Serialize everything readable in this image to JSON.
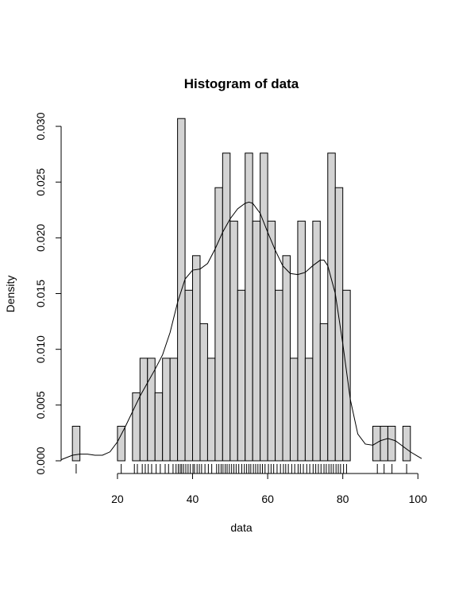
{
  "chart_data": {
    "type": "bar",
    "title": "Histogram of data",
    "xlabel": "data",
    "ylabel": "Density",
    "xlim": [
      5,
      101
    ],
    "ylim": [
      0,
      0.031
    ],
    "bin_width": 2,
    "x_ticks": [
      "20",
      "40",
      "60",
      "80",
      "100"
    ],
    "y_ticks": [
      "0.000",
      "0.005",
      "0.010",
      "0.015",
      "0.020",
      "0.025",
      "0.030"
    ],
    "bins": [
      {
        "x0": 8,
        "x1": 10,
        "density": 0.0031
      },
      {
        "x0": 20,
        "x1": 22,
        "density": 0.0031
      },
      {
        "x0": 24,
        "x1": 26,
        "density": 0.0061
      },
      {
        "x0": 26,
        "x1": 28,
        "density": 0.0092
      },
      {
        "x0": 28,
        "x1": 30,
        "density": 0.0092
      },
      {
        "x0": 30,
        "x1": 32,
        "density": 0.0061
      },
      {
        "x0": 32,
        "x1": 34,
        "density": 0.0092
      },
      {
        "x0": 34,
        "x1": 36,
        "density": 0.0092
      },
      {
        "x0": 36,
        "x1": 38,
        "density": 0.0307
      },
      {
        "x0": 38,
        "x1": 40,
        "density": 0.0153
      },
      {
        "x0": 40,
        "x1": 42,
        "density": 0.0184
      },
      {
        "x0": 42,
        "x1": 44,
        "density": 0.0123
      },
      {
        "x0": 44,
        "x1": 46,
        "density": 0.0092
      },
      {
        "x0": 46,
        "x1": 48,
        "density": 0.0245
      },
      {
        "x0": 48,
        "x1": 50,
        "density": 0.0276
      },
      {
        "x0": 50,
        "x1": 52,
        "density": 0.0215
      },
      {
        "x0": 52,
        "x1": 54,
        "density": 0.0153
      },
      {
        "x0": 54,
        "x1": 56,
        "density": 0.0276
      },
      {
        "x0": 56,
        "x1": 58,
        "density": 0.0215
      },
      {
        "x0": 58,
        "x1": 60,
        "density": 0.0276
      },
      {
        "x0": 60,
        "x1": 62,
        "density": 0.0215
      },
      {
        "x0": 62,
        "x1": 64,
        "density": 0.0153
      },
      {
        "x0": 64,
        "x1": 66,
        "density": 0.0184
      },
      {
        "x0": 66,
        "x1": 68,
        "density": 0.0092
      },
      {
        "x0": 68,
        "x1": 70,
        "density": 0.0215
      },
      {
        "x0": 70,
        "x1": 72,
        "density": 0.0092
      },
      {
        "x0": 72,
        "x1": 74,
        "density": 0.0215
      },
      {
        "x0": 74,
        "x1": 76,
        "density": 0.0123
      },
      {
        "x0": 76,
        "x1": 78,
        "density": 0.0276
      },
      {
        "x0": 78,
        "x1": 80,
        "density": 0.0245
      },
      {
        "x0": 80,
        "x1": 82,
        "density": 0.0153
      },
      {
        "x0": 88,
        "x1": 90,
        "density": 0.0031
      },
      {
        "x0": 90,
        "x1": 92,
        "density": 0.0031
      },
      {
        "x0": 92,
        "x1": 94,
        "density": 0.0031
      },
      {
        "x0": 96,
        "x1": 98,
        "density": 0.0031
      }
    ],
    "density_curve": {
      "x": [
        5,
        8,
        10,
        12,
        14,
        16,
        18,
        20,
        22,
        24,
        26,
        28,
        30,
        32,
        34,
        36,
        38,
        40,
        42,
        44,
        46,
        48,
        50,
        52,
        54,
        55,
        56,
        58,
        60,
        62,
        64,
        66,
        68,
        70,
        72,
        74,
        75,
        76,
        78,
        80,
        82,
        84,
        86,
        88,
        90,
        92,
        94,
        96,
        98,
        100,
        101
      ],
      "y": [
        0.0001,
        0.0005,
        0.0006,
        0.0006,
        0.0005,
        0.0005,
        0.0008,
        0.0017,
        0.003,
        0.0044,
        0.0058,
        0.007,
        0.0082,
        0.0095,
        0.0115,
        0.0142,
        0.0163,
        0.0171,
        0.0172,
        0.0177,
        0.019,
        0.0205,
        0.0217,
        0.0226,
        0.0231,
        0.0232,
        0.0231,
        0.0222,
        0.0205,
        0.0189,
        0.0175,
        0.0168,
        0.0167,
        0.0169,
        0.0175,
        0.018,
        0.018,
        0.0175,
        0.015,
        0.0105,
        0.0055,
        0.0024,
        0.0015,
        0.0014,
        0.0018,
        0.002,
        0.0018,
        0.0013,
        0.0008,
        0.0004,
        0.0002
      ]
    },
    "rug": [
      9,
      21,
      24.5,
      25.3,
      26.6,
      27.4,
      28.2,
      29.1,
      30.3,
      31.4,
      32.7,
      33.6,
      34.8,
      35.6,
      36.2,
      36.7,
      37.1,
      37.6,
      38.2,
      38.8,
      39.4,
      40.1,
      40.5,
      41.2,
      41.8,
      42.4,
      43.3,
      44.2,
      45.1,
      46.4,
      47,
      47.6,
      48.1,
      48.7,
      49.2,
      49.8,
      50.4,
      51,
      51.6,
      52.3,
      53.1,
      53.8,
      54.4,
      55,
      55.5,
      56.2,
      56.8,
      57.4,
      58,
      58.6,
      59.3,
      60.2,
      60.9,
      61.6,
      62.5,
      63.4,
      64.2,
      64.8,
      65.5,
      66.4,
      67.2,
      68.1,
      68.7,
      69.5,
      70.4,
      71.2,
      72.1,
      72.8,
      73.5,
      74.2,
      75,
      75.6,
      76.3,
      76.9,
      77.5,
      78.2,
      78.8,
      79.4,
      80.2,
      81,
      89.2,
      91,
      93.1,
      97
    ]
  }
}
